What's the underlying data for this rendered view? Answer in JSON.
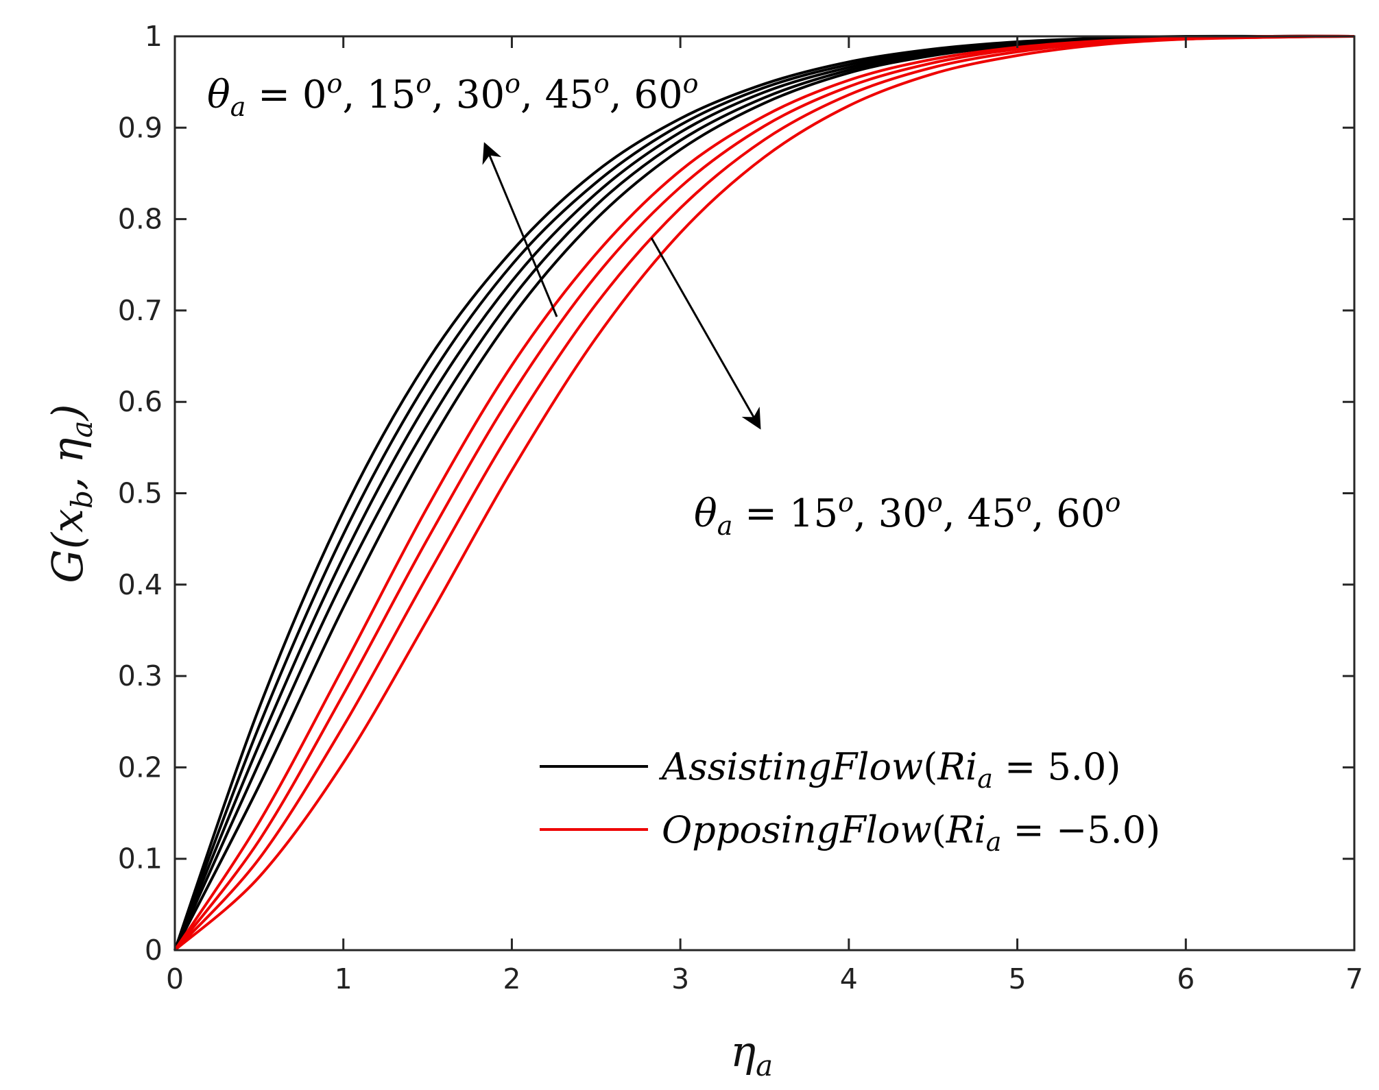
{
  "chart_data": {
    "type": "line",
    "xlabel": "η_a",
    "ylabel": "G(x_b, η_a)",
    "xlim": [
      0,
      7
    ],
    "ylim": [
      0,
      1
    ],
    "xticks": [
      0,
      1,
      2,
      3,
      4,
      5,
      6,
      7
    ],
    "yticks": [
      0,
      0.1,
      0.2,
      0.3,
      0.4,
      0.5,
      0.6,
      0.7,
      0.8,
      0.9,
      1
    ],
    "grid": false,
    "legend_position": "bottom-right",
    "colors": {
      "assisting": "#000000",
      "opposing": "#ee0000"
    },
    "x": [
      0,
      0.5,
      1,
      1.5,
      2,
      2.5,
      3,
      3.5,
      4,
      4.5,
      5,
      5.5,
      6,
      6.5,
      7
    ],
    "series": [
      {
        "name": "AssistingFlow(Ri_a = 5.0)",
        "group": "assisting",
        "theta": "0°",
        "values": [
          0,
          0.265,
          0.48,
          0.645,
          0.765,
          0.852,
          0.91,
          0.948,
          0.972,
          0.986,
          0.994,
          0.998,
          1.0,
          1.0,
          1.0
        ]
      },
      {
        "group": "assisting",
        "theta": "15°",
        "values": [
          0,
          0.245,
          0.455,
          0.623,
          0.75,
          0.84,
          0.903,
          0.944,
          0.969,
          0.984,
          0.993,
          0.997,
          0.999,
          1.0,
          1.0
        ]
      },
      {
        "group": "assisting",
        "theta": "30°",
        "values": [
          0,
          0.225,
          0.43,
          0.6,
          0.732,
          0.828,
          0.895,
          0.939,
          0.966,
          0.983,
          0.992,
          0.997,
          0.999,
          1.0,
          1.0
        ]
      },
      {
        "group": "assisting",
        "theta": "45°",
        "values": [
          0,
          0.205,
          0.405,
          0.575,
          0.713,
          0.815,
          0.886,
          0.933,
          0.963,
          0.981,
          0.991,
          0.996,
          0.999,
          1.0,
          1.0
        ]
      },
      {
        "group": "assisting",
        "theta": "60°",
        "values": [
          0,
          0.18,
          0.375,
          0.55,
          0.693,
          0.8,
          0.876,
          0.927,
          0.96,
          0.979,
          0.99,
          0.996,
          0.999,
          1.0,
          1.0
        ]
      },
      {
        "name": "OpposingFlow(Ri_a = -5.0)",
        "group": "opposing",
        "theta": "15°",
        "values": [
          0,
          0.14,
          0.31,
          0.485,
          0.64,
          0.762,
          0.853,
          0.913,
          0.952,
          0.975,
          0.988,
          0.995,
          0.998,
          1.0,
          1.0
        ]
      },
      {
        "group": "opposing",
        "theta": "30°",
        "values": [
          0,
          0.12,
          0.28,
          0.45,
          0.608,
          0.738,
          0.835,
          0.902,
          0.945,
          0.971,
          0.986,
          0.994,
          0.998,
          1.0,
          1.0
        ]
      },
      {
        "group": "opposing",
        "theta": "45°",
        "values": [
          0,
          0.1,
          0.245,
          0.41,
          0.57,
          0.707,
          0.812,
          0.887,
          0.936,
          0.966,
          0.983,
          0.993,
          0.997,
          0.999,
          1.0
        ]
      },
      {
        "group": "opposing",
        "theta": "60°",
        "values": [
          0,
          0.08,
          0.205,
          0.362,
          0.525,
          0.67,
          0.785,
          0.868,
          0.924,
          0.959,
          0.979,
          0.991,
          0.997,
          0.999,
          1.0
        ]
      }
    ],
    "annotations": [
      {
        "id": "assisting",
        "lead": "θ_a = ",
        "values": [
          "0",
          "15",
          "30",
          "45",
          "60"
        ],
        "degree": "o"
      },
      {
        "id": "opposing",
        "lead": "θ_a = ",
        "values": [
          "15",
          "30",
          "45",
          "60"
        ],
        "degree": "o"
      }
    ]
  }
}
